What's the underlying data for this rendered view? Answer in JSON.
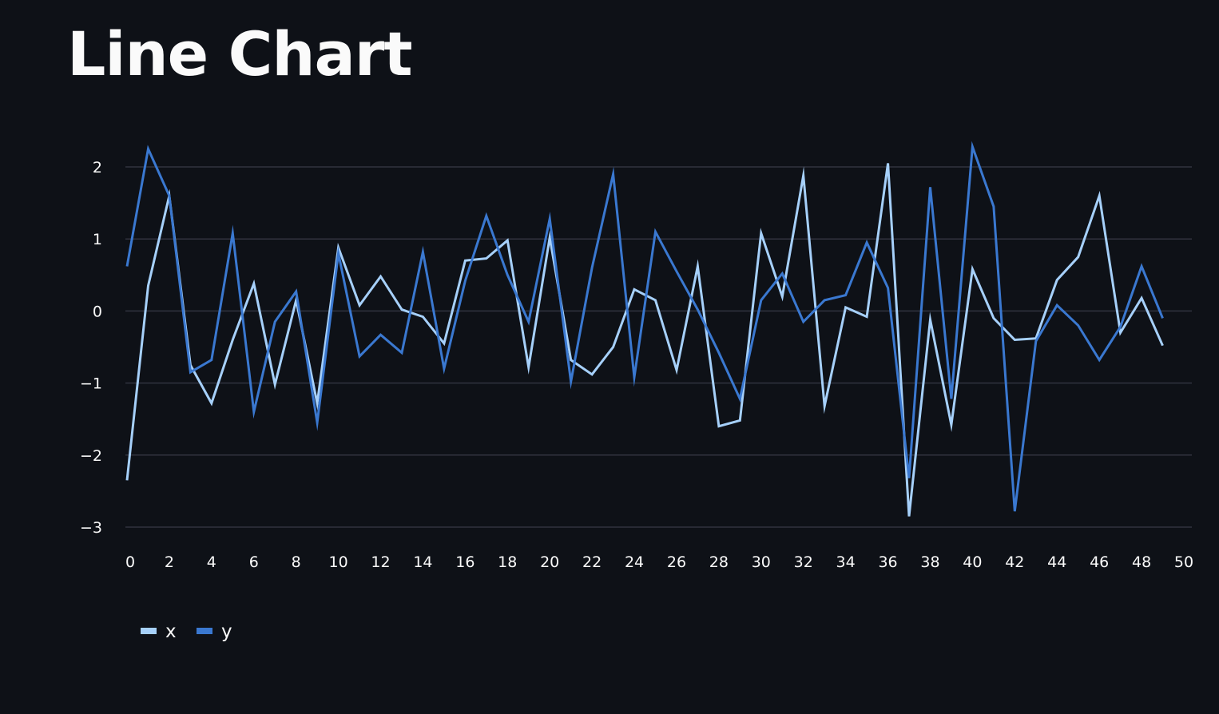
{
  "page": {
    "title": "Line Chart",
    "background": "#0e1117"
  },
  "chart_data": {
    "type": "line",
    "title": "",
    "xlabel": "",
    "ylabel": "",
    "xlim": [
      0,
      50
    ],
    "ylim": [
      -3,
      2.5
    ],
    "x_ticks": [
      0,
      2,
      4,
      6,
      8,
      10,
      12,
      14,
      16,
      18,
      20,
      22,
      24,
      26,
      28,
      30,
      32,
      34,
      36,
      38,
      40,
      42,
      44,
      46,
      48,
      50
    ],
    "y_ticks": [
      -3,
      -2,
      -1,
      0,
      1,
      2
    ],
    "y_tick_labels": [
      "−3",
      "−2",
      "−1",
      "0",
      "1",
      "2"
    ],
    "grid": "horizontal",
    "legend_position": "bottom-left",
    "x": [
      0,
      1,
      2,
      3,
      4,
      5,
      6,
      7,
      8,
      9,
      10,
      11,
      12,
      13,
      14,
      15,
      16,
      17,
      18,
      19,
      20,
      21,
      22,
      23,
      24,
      25,
      26,
      27,
      28,
      29,
      30,
      31,
      32,
      33,
      34,
      35,
      36,
      37,
      38,
      39,
      40,
      41,
      42,
      43,
      44,
      45,
      46,
      47,
      48,
      49
    ],
    "series": [
      {
        "name": "x",
        "color": "#a6d0fa",
        "values": [
          -2.35,
          0.35,
          1.6,
          -0.75,
          -1.28,
          -0.4,
          0.38,
          -1.02,
          0.15,
          -1.28,
          0.88,
          0.08,
          0.48,
          0.02,
          -0.08,
          -0.45,
          0.7,
          0.73,
          0.98,
          -0.78,
          1.02,
          -0.68,
          -0.88,
          -0.5,
          0.3,
          0.15,
          -0.82,
          0.62,
          -1.6,
          -1.52,
          1.08,
          0.2,
          1.88,
          -1.32,
          0.05,
          -0.08,
          2.05,
          -2.85,
          -0.12,
          -1.58,
          0.58,
          -0.1,
          -0.4,
          -0.38,
          0.43,
          0.75,
          1.6,
          -0.3,
          0.18,
          -0.48
        ]
      },
      {
        "name": "y",
        "color": "#3a78d0",
        "values": [
          0.62,
          2.25,
          1.6,
          -0.85,
          -0.68,
          1.08,
          -1.4,
          -0.15,
          0.27,
          -1.55,
          0.8,
          -0.63,
          -0.33,
          -0.58,
          0.82,
          -0.8,
          0.42,
          1.32,
          0.5,
          -0.15,
          1.28,
          -0.98,
          0.6,
          1.9,
          -0.92,
          1.1,
          0.55,
          0.02,
          -0.58,
          -1.22,
          0.15,
          0.52,
          -0.15,
          0.15,
          0.22,
          0.95,
          0.32,
          -2.32,
          1.72,
          -1.22,
          2.28,
          1.45,
          -2.78,
          -0.42,
          0.08,
          -0.2,
          -0.68,
          -0.22,
          0.62,
          -0.1
        ]
      }
    ]
  }
}
